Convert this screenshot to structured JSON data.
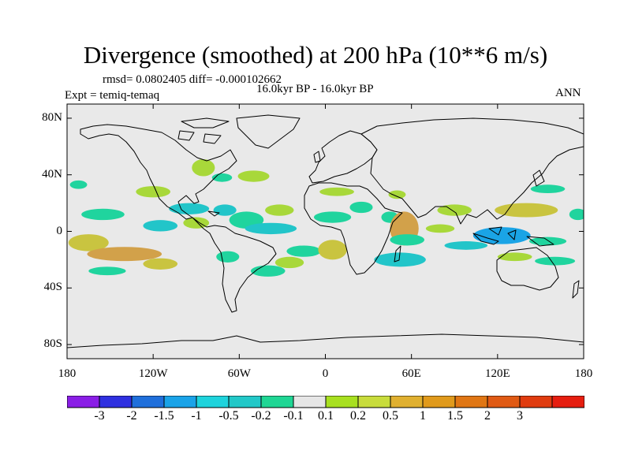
{
  "header": {
    "title": "Divergence (smoothed) at 200 hPa (10**6 m/s)",
    "stats": "rmsd= 0.0802405 diff= -0.000102662",
    "experiment": "Expt = temiq-temaq",
    "period": "16.0kyr BP - 16.0kyr BP",
    "season": "ANN"
  },
  "map": {
    "projection": "cylindrical-equidistant",
    "lon_range": [
      -180,
      180
    ],
    "lat_range": [
      -90,
      90
    ],
    "y_ticks": [
      {
        "label": "80N",
        "lat": 80
      },
      {
        "label": "40N",
        "lat": 40
      },
      {
        "label": "0",
        "lat": 0
      },
      {
        "label": "40S",
        "lat": -40
      },
      {
        "label": "80S",
        "lat": -80
      }
    ],
    "x_ticks": [
      {
        "label": "180",
        "lon": -180
      },
      {
        "label": "120W",
        "lon": -120
      },
      {
        "label": "60W",
        "lon": -60
      },
      {
        "label": "0",
        "lon": 0
      },
      {
        "label": "60E",
        "lon": 60
      },
      {
        "label": "120E",
        "lon": 120
      },
      {
        "label": "180",
        "lon": 180
      }
    ]
  },
  "colorbar": {
    "colors": [
      "#8a1ee6",
      "#2f30e0",
      "#1f6fdb",
      "#1aa3e8",
      "#1ed3dc",
      "#22c8c8",
      "#1fd694",
      "#e6e6e6",
      "#a8e020",
      "#c8dc3c",
      "#e0b030",
      "#e09a1c",
      "#e07614",
      "#e05a14",
      "#e03c10",
      "#e61e10"
    ],
    "labels": [
      "-3",
      "-2",
      "-1.5",
      "-1",
      "-0.5",
      "-0.2",
      "-0.1",
      "0.1",
      "0.2",
      "0.5",
      "1",
      "1.5",
      "2",
      "3"
    ]
  },
  "colors": {
    "ocean_background": "#e9e9e9",
    "positive_weak": "#a8d83a",
    "positive_mid": "#c9c440",
    "positive_strong": "#d2a14a",
    "negative_weak": "#20d49e",
    "negative_mid": "#22c5c9",
    "negative_strong": "#1aa4e6"
  },
  "field": {
    "level": "weak",
    "values_note": "qualitative reconstruction of smoothed divergence anomalies",
    "blobs": [
      {
        "lon": -165,
        "lat": -8,
        "rx": 14,
        "ry": 6,
        "v": 0.3
      },
      {
        "lon": -140,
        "lat": -16,
        "rx": 26,
        "ry": 5,
        "v": 0.5
      },
      {
        "lon": -115,
        "lat": -23,
        "rx": 12,
        "ry": 4,
        "v": 0.3
      },
      {
        "lon": -155,
        "lat": 12,
        "rx": 15,
        "ry": 4,
        "v": -0.2
      },
      {
        "lon": -152,
        "lat": -28,
        "rx": 13,
        "ry": 3,
        "v": -0.15
      },
      {
        "lon": -172,
        "lat": 33,
        "rx": 6,
        "ry": 3,
        "v": -0.12
      },
      {
        "lon": -120,
        "lat": 28,
        "rx": 12,
        "ry": 4,
        "v": 0.2
      },
      {
        "lon": -95,
        "lat": 16,
        "rx": 14,
        "ry": 4,
        "v": -0.3
      },
      {
        "lon": -115,
        "lat": 4,
        "rx": 12,
        "ry": 4,
        "v": -0.3
      },
      {
        "lon": -90,
        "lat": 6,
        "rx": 9,
        "ry": 4,
        "v": 0.2
      },
      {
        "lon": -70,
        "lat": 15,
        "rx": 8,
        "ry": 4,
        "v": -0.25
      },
      {
        "lon": -85,
        "lat": 45,
        "rx": 8,
        "ry": 6,
        "v": 0.22
      },
      {
        "lon": -72,
        "lat": 38,
        "rx": 7,
        "ry": 3,
        "v": -0.12
      },
      {
        "lon": -50,
        "lat": 39,
        "rx": 11,
        "ry": 4,
        "v": 0.22
      },
      {
        "lon": -32,
        "lat": 15,
        "rx": 10,
        "ry": 4,
        "v": 0.2
      },
      {
        "lon": -55,
        "lat": 8,
        "rx": 12,
        "ry": 6,
        "v": -0.15
      },
      {
        "lon": -38,
        "lat": 2,
        "rx": 18,
        "ry": 4,
        "v": -0.3
      },
      {
        "lon": -25,
        "lat": -22,
        "rx": 10,
        "ry": 4,
        "v": 0.22
      },
      {
        "lon": -40,
        "lat": -28,
        "rx": 12,
        "ry": 4,
        "v": -0.2
      },
      {
        "lon": -68,
        "lat": -18,
        "rx": 8,
        "ry": 4,
        "v": -0.2
      },
      {
        "lon": -15,
        "lat": -14,
        "rx": 12,
        "ry": 4,
        "v": -0.2
      },
      {
        "lon": 5,
        "lat": 10,
        "rx": 13,
        "ry": 4,
        "v": -0.22
      },
      {
        "lon": 5,
        "lat": -13,
        "rx": 10,
        "ry": 7,
        "v": 0.45
      },
      {
        "lon": 8,
        "lat": 28,
        "rx": 12,
        "ry": 3,
        "v": 0.2
      },
      {
        "lon": 25,
        "lat": 17,
        "rx": 8,
        "ry": 4,
        "v": -0.15
      },
      {
        "lon": 45,
        "lat": 10,
        "rx": 6,
        "ry": 4,
        "v": -0.15
      },
      {
        "lon": 55,
        "lat": 2,
        "rx": 10,
        "ry": 12,
        "v": 0.55
      },
      {
        "lon": 52,
        "lat": -20,
        "rx": 18,
        "ry": 5,
        "v": -0.25
      },
      {
        "lon": 57,
        "lat": -6,
        "rx": 12,
        "ry": 4,
        "v": -0.2
      },
      {
        "lon": 50,
        "lat": 26,
        "rx": 6,
        "ry": 3,
        "v": 0.2
      },
      {
        "lon": 80,
        "lat": 2,
        "rx": 10,
        "ry": 3,
        "v": 0.25
      },
      {
        "lon": 98,
        "lat": -10,
        "rx": 15,
        "ry": 3,
        "v": -0.3
      },
      {
        "lon": 90,
        "lat": 15,
        "rx": 12,
        "ry": 4,
        "v": 0.25
      },
      {
        "lon": 123,
        "lat": -3,
        "rx": 20,
        "ry": 6,
        "v": -0.6
      },
      {
        "lon": 140,
        "lat": 15,
        "rx": 22,
        "ry": 5,
        "v": 0.4
      },
      {
        "lon": 155,
        "lat": 30,
        "rx": 12,
        "ry": 3,
        "v": -0.2
      },
      {
        "lon": 155,
        "lat": -7,
        "rx": 13,
        "ry": 3,
        "v": -0.2
      },
      {
        "lon": 160,
        "lat": -21,
        "rx": 14,
        "ry": 3,
        "v": -0.15
      },
      {
        "lon": 132,
        "lat": -18,
        "rx": 12,
        "ry": 3,
        "v": 0.15
      },
      {
        "lon": 176,
        "lat": 12,
        "rx": 6,
        "ry": 4,
        "v": -0.15
      }
    ]
  }
}
